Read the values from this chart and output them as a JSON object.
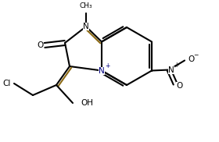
{
  "bg": "#ffffff",
  "lc": "#000000",
  "bc": "#8B6914",
  "blue": "#000080",
  "figsize": [
    2.8,
    1.82
  ],
  "dpi": 100,
  "lw": 1.5,
  "notes": {
    "structure": "imidazo[1,2-a]pyridine fused bicyclic: 5-ring left fused with 6-ring right",
    "five_ring": "N1(top,methyl)-C2(C=O,left)-C3(exo=C,bottom-left)-N4+(bottom,fused)-C8a(top-right,fused)",
    "six_ring": "N4+(bottom-left)-C5(bottom)-C6(bottom-right,NO2)-C7(right)-C8(top-right)-C8a(top-left,fused)",
    "exo": "C3=C(OH)(CH2Cl) hangs below-left",
    "NO2": "on C6 pointing right"
  }
}
